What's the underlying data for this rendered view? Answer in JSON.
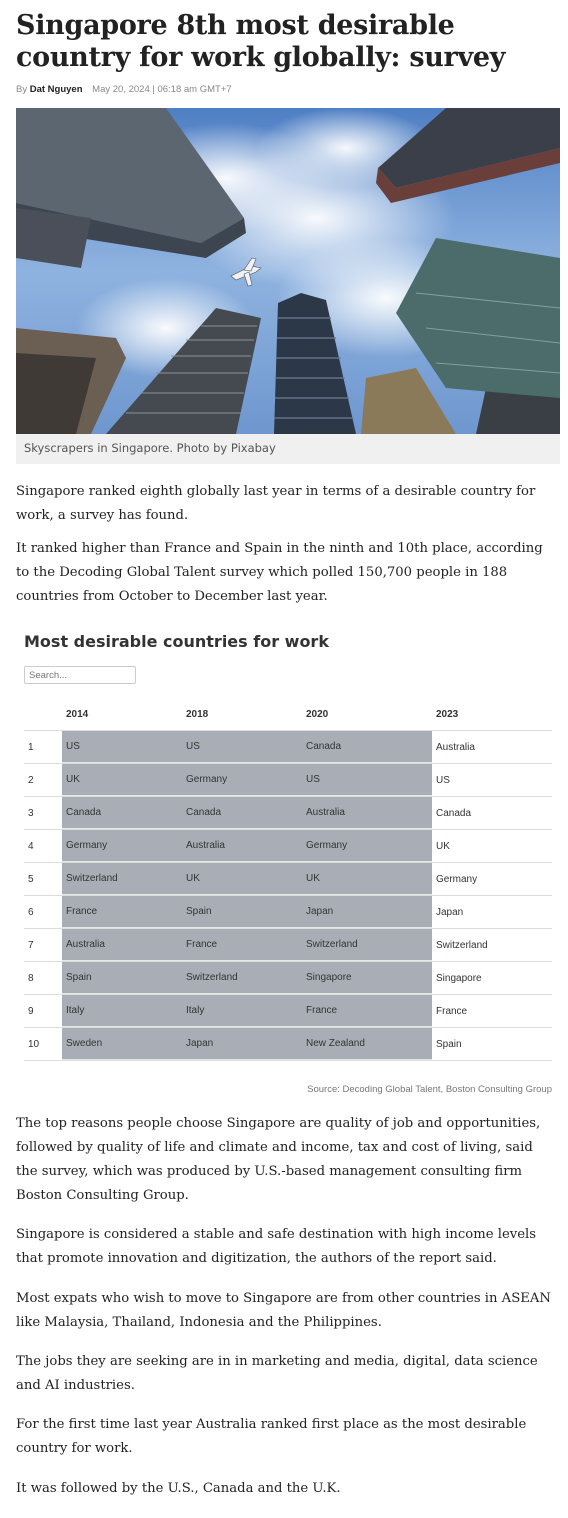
{
  "article": {
    "headline": "Singapore 8th most desirable country for work globally: survey",
    "byline_prefix": "By",
    "author": "Dat Nguyen",
    "date": "May 20, 2024 | 06:18 am GMT+7",
    "photo_caption": "Skyscrapers in Singapore. Photo by Pixabay",
    "paragraphs": [
      "Singapore ranked eighth globally last year in terms of a desirable country for work, a survey has found.",
      "It ranked higher than France and Spain in the ninth and 10th place, according to the Decoding Global Talent survey which polled 150,700 people in 188 countries from October to December last year.",
      "The top reasons people choose Singapore are quality of job and opportunities, followed by quality of life and climate and income, tax and cost of living, said the survey, which was produced by U.S.-based management consulting firm Boston Consulting Group.",
      "Singapore is considered a stable and safe destination with high income levels that promote innovation and digitization, the authors of the report said.",
      "Most expats who wish to move to Singapore are from other countries in ASEAN like Malaysia, Thailand, Indonesia and the Philippines.",
      "The jobs they are seeking are in in marketing and media, digital, data science and AI industries.",
      "For the first time last year Australia ranked first place as the most desirable country for work.",
      "It was followed by the U.S., Canada and the U.K."
    ]
  },
  "table": {
    "title": "Most desirable countries for work",
    "search_placeholder": "Search...",
    "headers": [
      "",
      "2014",
      "2018",
      "2020",
      "2023"
    ],
    "rows": [
      [
        "1",
        "US",
        "US",
        "Canada",
        "Australia"
      ],
      [
        "2",
        "UK",
        "Germany",
        "US",
        "US"
      ],
      [
        "3",
        "Canada",
        "Canada",
        "Australia",
        "Canada"
      ],
      [
        "4",
        "Germany",
        "Australia",
        "Germany",
        "UK"
      ],
      [
        "5",
        "Switzerland",
        "UK",
        "UK",
        "Germany"
      ],
      [
        "6",
        "France",
        "Spain",
        "Japan",
        "Japan"
      ],
      [
        "7",
        "Australia",
        "France",
        "Switzerland",
        "Switzerland"
      ],
      [
        "8",
        "Spain",
        "Switzerland",
        "Singapore",
        "Singapore"
      ],
      [
        "9",
        "Italy",
        "Italy",
        "France",
        "France"
      ],
      [
        "10",
        "Sweden",
        "Japan",
        "New Zealand",
        "Spain"
      ]
    ],
    "source": "Source: Decoding Global Talent, Boston Consulting Group"
  },
  "colors": {
    "highlight_cells": "#a9aeb6",
    "caption_bar": "#f0f0f0"
  }
}
